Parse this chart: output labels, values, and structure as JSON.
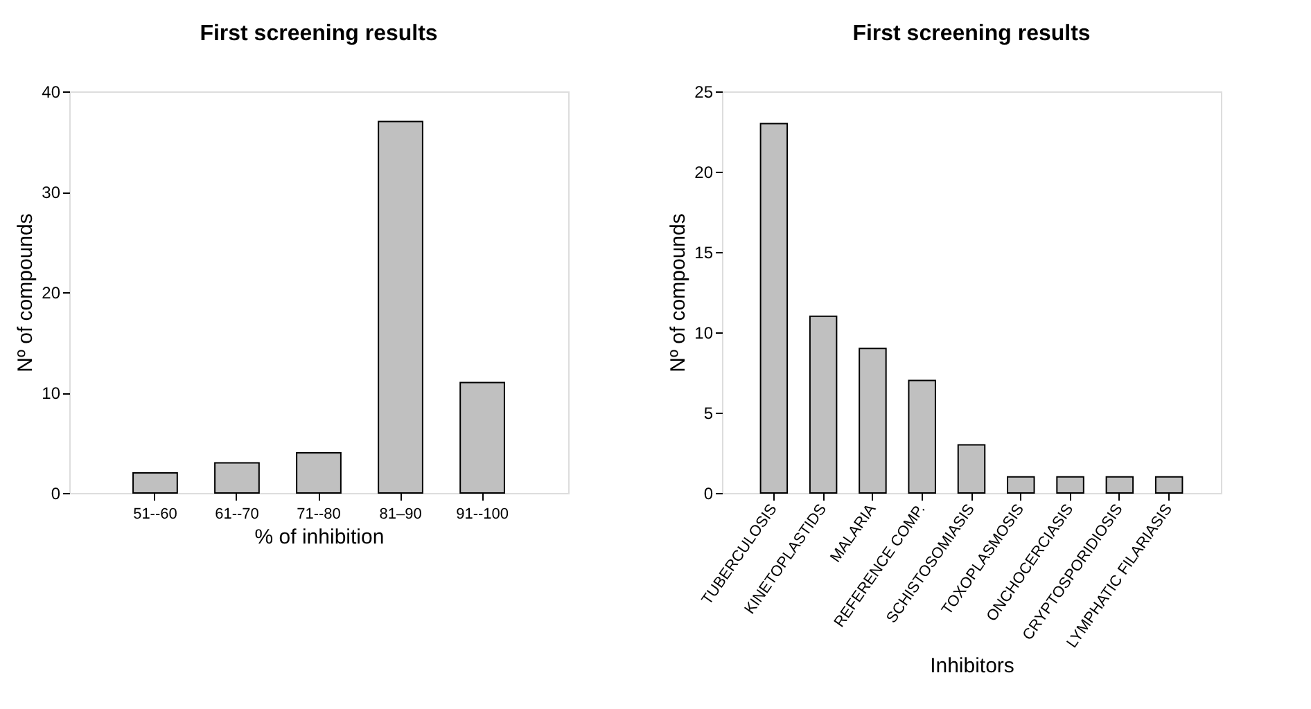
{
  "chart_data": [
    {
      "type": "bar",
      "title": "First screening results",
      "xlabel": "% of inhibition",
      "ylabel": "Nº of compounds",
      "categories": [
        "51--60",
        "61--70",
        "71--80",
        "81–90",
        "91--100"
      ],
      "series": [
        {
          "color": "#c0c0c0",
          "values": [
            2,
            3,
            4,
            37,
            11
          ]
        }
      ],
      "ylim": [
        0,
        40
      ],
      "yticks": [
        0,
        10,
        20,
        30,
        40
      ],
      "grid": false
    },
    {
      "type": "bar",
      "title": "First screening results",
      "xlabel": "Inhibitors",
      "ylabel": "Nº of compounds",
      "categories": [
        "TUBERCULOSIS",
        "KINETOPLASTIDS",
        "MALARIA",
        "REFERENCE COMP.",
        "SCHISTOSOMIASIS",
        "TOXOPLASMOSIS",
        "ONCHOCERCIASIS",
        "CRYPTOSPORIDIOSIS",
        "LYMPHATIC FILARIASIS"
      ],
      "series": [
        {
          "color": "#c0c0c0",
          "values": [
            23,
            11,
            9,
            7,
            3,
            1,
            1,
            1,
            1
          ]
        }
      ],
      "ylim": [
        0,
        25
      ],
      "yticks": [
        0,
        5,
        10,
        15,
        20,
        25
      ],
      "grid": false
    }
  ]
}
